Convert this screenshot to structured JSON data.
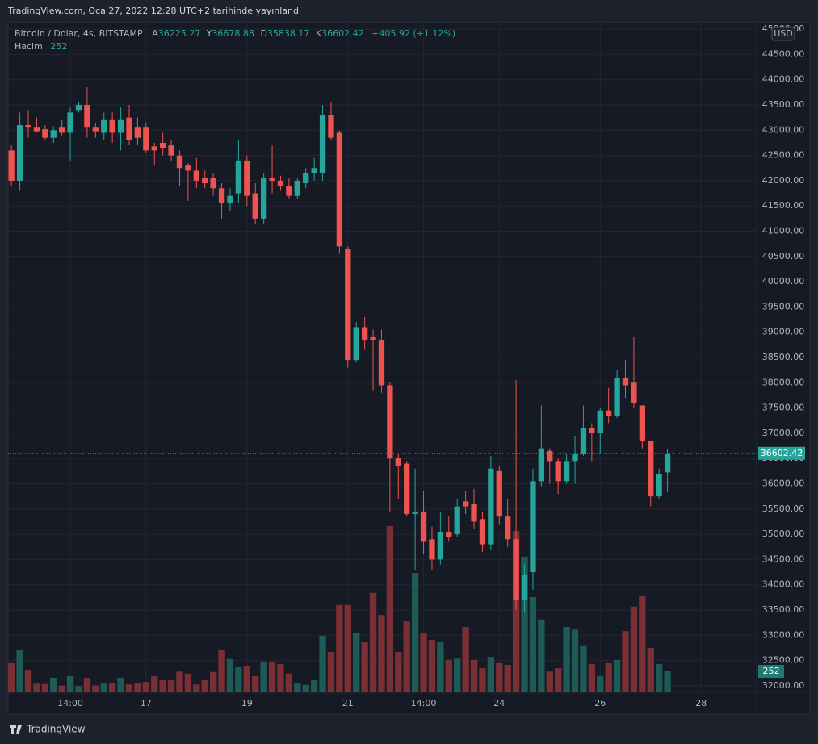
{
  "chart_data": {
    "type": "candlestick",
    "title": "TradingView.com, Oca 27, 2022 12:28 UTC+2 tarihinde yayınlandı",
    "symbol": "Bitcoin / Dolar, 4s, BITSTAMP",
    "open_label": "A",
    "high_label": "Y",
    "low_label": "D",
    "close_label": "K",
    "change": "+405.92 (+1.12%)",
    "volume_label": "Hacim",
    "currency": "USD",
    "brand": "TradingView",
    "up_color": "#26a69a",
    "down_color": "#ef5350",
    "volume_up_color": "#1e5b57",
    "volume_down_color": "#7a2f34",
    "open": [
      42600,
      42000,
      43100,
      43050,
      43020,
      42850,
      43050,
      42950,
      43400,
      43500,
      43050,
      42950,
      43200,
      42950,
      43250,
      43050,
      43050,
      42680,
      42750,
      42700,
      42500,
      42300,
      42200,
      42050,
      42050,
      41850,
      41550,
      41750,
      42400,
      41750,
      41250,
      42050,
      42000,
      41900,
      41700,
      41950,
      42150,
      42150,
      43300,
      42950,
      40650,
      38450,
      39100,
      38900,
      38850,
      37950,
      36500,
      36400,
      35400,
      35450,
      34900,
      34500,
      35050,
      35000,
      35650,
      35600,
      35300,
      34800,
      36250,
      35350,
      34900,
      33700,
      34250,
      36050,
      36650,
      36450,
      36050,
      36450,
      36600,
      37100,
      37000,
      37450,
      37350,
      38100,
      38000,
      37550,
      36850,
      35750,
      36225.27
    ],
    "high": [
      42700,
      43350,
      43400,
      43250,
      43100,
      43080,
      43200,
      43450,
      43550,
      43850,
      43150,
      43350,
      43350,
      43450,
      43500,
      43250,
      43150,
      42750,
      42950,
      42800,
      42600,
      42350,
      42450,
      42200,
      42150,
      41950,
      41850,
      42800,
      42500,
      41950,
      42150,
      42700,
      42100,
      42050,
      42050,
      42250,
      42450,
      43500,
      43550,
      43000,
      40700,
      39200,
      39300,
      39050,
      39050,
      38000,
      36600,
      36450,
      36300,
      35850,
      35150,
      35450,
      35350,
      35700,
      35850,
      35900,
      35450,
      36550,
      36350,
      35700,
      38050,
      34400,
      36300,
      37550,
      36700,
      36500,
      36600,
      36950,
      37550,
      37200,
      37500,
      37900,
      38250,
      38450,
      38900,
      37550,
      36850,
      36300,
      36678.88
    ],
    "low": [
      41900,
      41800,
      42850,
      42950,
      42800,
      42750,
      42900,
      42400,
      43350,
      42850,
      42850,
      42800,
      42750,
      42600,
      42700,
      42700,
      42550,
      42300,
      42500,
      42400,
      41900,
      41600,
      41850,
      41850,
      41700,
      41250,
      41400,
      41550,
      41500,
      41150,
      41150,
      41750,
      41800,
      41650,
      41650,
      41850,
      42000,
      42000,
      42800,
      40550,
      38300,
      38400,
      38650,
      37850,
      37800,
      35450,
      35700,
      35350,
      34300,
      34600,
      34300,
      34400,
      34850,
      34950,
      35400,
      35100,
      34650,
      34700,
      35200,
      34750,
      33500,
      33450,
      33900,
      35950,
      36000,
      35800,
      36000,
      36000,
      36550,
      36450,
      36600,
      37200,
      37300,
      37700,
      37500,
      36700,
      35550,
      35700,
      35838.17
    ],
    "close": [
      42000,
      43100,
      43050,
      42980,
      42850,
      43000,
      42950,
      43350,
      43500,
      43050,
      42980,
      43200,
      42950,
      43200,
      42800,
      42850,
      42600,
      42600,
      42650,
      42500,
      42250,
      42200,
      42000,
      41950,
      41850,
      41550,
      41700,
      42400,
      41700,
      41250,
      42050,
      42000,
      41900,
      41700,
      42000,
      42150,
      42250,
      43300,
      42850,
      40700,
      38450,
      39100,
      38850,
      38850,
      37950,
      36500,
      36350,
      35400,
      35450,
      34850,
      34500,
      35050,
      34950,
      35550,
      35550,
      35250,
      34800,
      36300,
      35350,
      34900,
      33700,
      34200,
      36050,
      36700,
      36450,
      36050,
      36450,
      36600,
      37100,
      37000,
      37450,
      37350,
      38100,
      37950,
      37600,
      36850,
      35750,
      36200,
      36602.42
    ],
    "volume": [
      350,
      515,
      270,
      105,
      100,
      175,
      80,
      195,
      75,
      175,
      80,
      105,
      110,
      175,
      95,
      115,
      125,
      195,
      145,
      145,
      250,
      225,
      95,
      145,
      245,
      515,
      400,
      310,
      320,
      195,
      370,
      370,
      340,
      225,
      105,
      90,
      145,
      680,
      485,
      1050,
      1050,
      710,
      610,
      1195,
      930,
      2000,
      485,
      855,
      1435,
      710,
      630,
      610,
      390,
      405,
      785,
      390,
      290,
      425,
      350,
      330,
      1940,
      1630,
      1145,
      875,
      250,
      290,
      785,
      755,
      565,
      340,
      195,
      350,
      390,
      735,
      1030,
      1165,
      535,
      340,
      252
    ],
    "volume_ylim": [
      0,
      8050
    ],
    "xlim": [
      -0.4,
      88.6
    ],
    "xticks": [
      {
        "value": 7,
        "label": "14:00"
      },
      {
        "value": 16,
        "label": "17"
      },
      {
        "value": 28,
        "label": "19"
      },
      {
        "value": 40,
        "label": "21"
      },
      {
        "value": 49,
        "label": "14:00"
      },
      {
        "value": 58,
        "label": "24"
      },
      {
        "value": 70,
        "label": "26"
      },
      {
        "value": 82,
        "label": "28"
      }
    ],
    "ylim": [
      31870,
      45130
    ],
    "yticks": [
      {
        "value": 32000,
        "label": "32000.00"
      },
      {
        "value": 32500,
        "label": "32500.00"
      },
      {
        "value": 33000,
        "label": "33000.00"
      },
      {
        "value": 33500,
        "label": "33500.00"
      },
      {
        "value": 34000,
        "label": "34000.00"
      },
      {
        "value": 34500,
        "label": "34500.00"
      },
      {
        "value": 35000,
        "label": "35000.00"
      },
      {
        "value": 35500,
        "label": "35500.00"
      },
      {
        "value": 36000,
        "label": "36000.00"
      },
      {
        "value": 36500,
        "label": "36500.00"
      },
      {
        "value": 37000,
        "label": "37000.00"
      },
      {
        "value": 37500,
        "label": "37500.00"
      },
      {
        "value": 38000,
        "label": "38000.00"
      },
      {
        "value": 38500,
        "label": "38500.00"
      },
      {
        "value": 39000,
        "label": "39000.00"
      },
      {
        "value": 39500,
        "label": "39500.00"
      },
      {
        "value": 40000,
        "label": "40000.00"
      },
      {
        "value": 40500,
        "label": "40500.00"
      },
      {
        "value": 41000,
        "label": "41000.00"
      },
      {
        "value": 41500,
        "label": "41500.00"
      },
      {
        "value": 42000,
        "label": "42000.00"
      },
      {
        "value": 42500,
        "label": "42500.00"
      },
      {
        "value": 43000,
        "label": "43000.00"
      },
      {
        "value": 43500,
        "label": "43500.00"
      },
      {
        "value": 44000,
        "label": "44000.00"
      },
      {
        "value": 44500,
        "label": "44500.00"
      },
      {
        "value": 45000,
        "label": "45000.00"
      }
    ],
    "grid": true
  }
}
